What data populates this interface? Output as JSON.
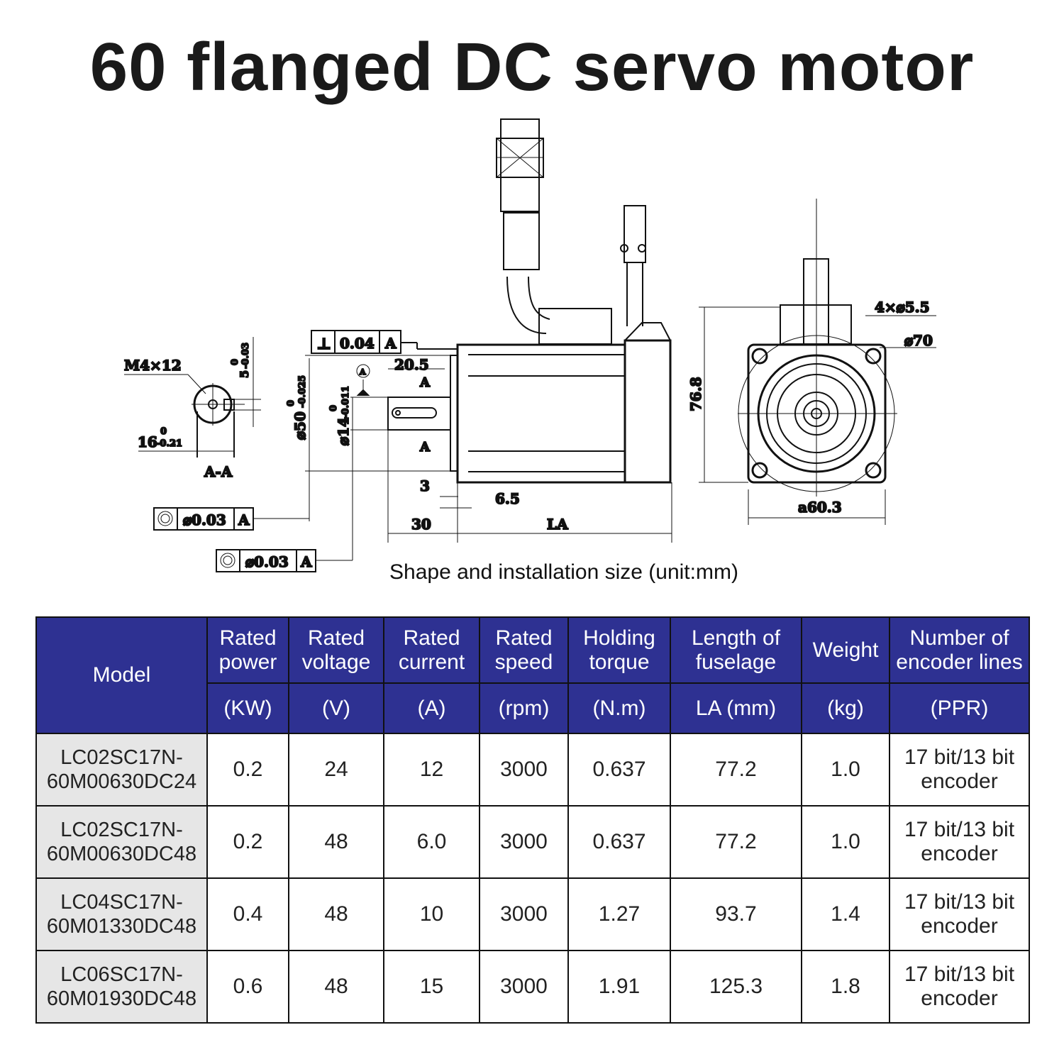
{
  "title": "60 flanged DC servo motor",
  "drawing": {
    "caption": "Shape and installation size (unit:mm)",
    "labels": {
      "thread": "M4×12",
      "key_width": "5",
      "key_width_tol_upper": "0",
      "key_width_tol_lower": "-0.03",
      "key_depth": "16",
      "key_depth_tol_upper": "0",
      "key_depth_tol_lower": "-0.21",
      "section": "A-A",
      "perpendicularity_symbol": "⊥",
      "perpendicularity_value": "0.04",
      "datum": "A",
      "shaft_length": "20.5",
      "section_mark_top": "A",
      "section_mark_bottom": "A",
      "datum_circle": "A",
      "spigot": "⌀50",
      "spigot_tol_upper": "0",
      "spigot_tol_lower": "-0.025",
      "shaft": "⌀14",
      "shaft_tol_upper": "0",
      "shaft_tol_lower": "-0.011",
      "flange_thickness": "3",
      "spigot_depth": "6.5",
      "shaft_extension": "30",
      "body_length": "LA",
      "concentricity_1": "⌀0.03",
      "concentricity_2": "⌀0.03",
      "height": "76.8",
      "holes": "4×⌀5.5",
      "pcd": "⌀70",
      "flange_square": "a60.3"
    }
  },
  "table": {
    "headers": [
      {
        "top": "Model",
        "sub": ""
      },
      {
        "top": "Rated power",
        "sub": "(KW)"
      },
      {
        "top": "Rated voltage",
        "sub": "(V)"
      },
      {
        "top": "Rated current",
        "sub": "(A)"
      },
      {
        "top": "Rated speed",
        "sub": "(rpm)"
      },
      {
        "top": "Holding torque",
        "sub": "(N.m)"
      },
      {
        "top": "Length of fuselage",
        "sub": "LA (mm)"
      },
      {
        "top": "Weight",
        "sub": "(kg)"
      },
      {
        "top": "Number of encoder lines",
        "sub": "(PPR)"
      }
    ],
    "rows": [
      [
        "LC02SC17N-60M00630DC24",
        "0.2",
        "24",
        "12",
        "3000",
        "0.637",
        "77.2",
        "1.0",
        "17 bit/13 bit encoder"
      ],
      [
        "LC02SC17N-60M00630DC48",
        "0.2",
        "48",
        "6.0",
        "3000",
        "0.637",
        "77.2",
        "1.0",
        "17 bit/13 bit encoder"
      ],
      [
        "LC04SC17N-60M01330DC48",
        "0.4",
        "48",
        "10",
        "3000",
        "1.27",
        "93.7",
        "1.4",
        "17 bit/13 bit encoder"
      ],
      [
        "LC06SC17N-60M01930DC48",
        "0.6",
        "48",
        "15",
        "3000",
        "1.91",
        "125.3",
        "1.8",
        "17 bit/13 bit encoder"
      ]
    ],
    "header_color": "#2e3192",
    "model_cell_color": "#e6e6e6"
  }
}
